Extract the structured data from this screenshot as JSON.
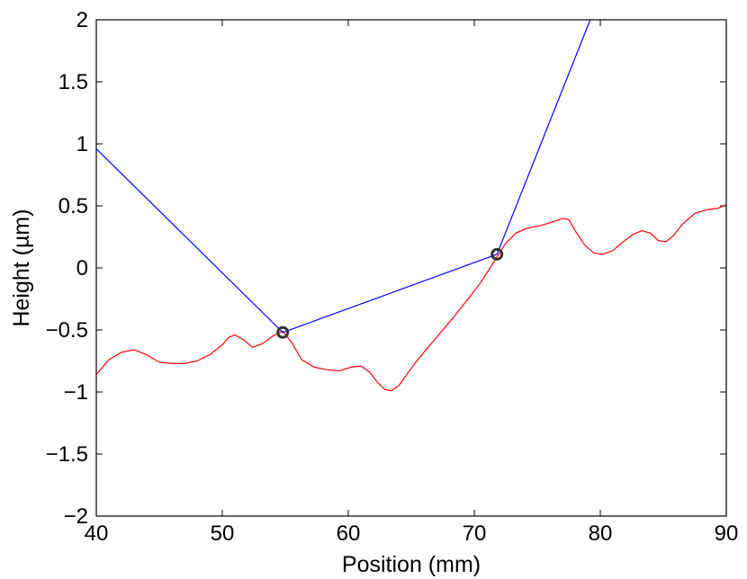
{
  "chart_data": {
    "type": "line",
    "xlabel": "Position (mm)",
    "ylabel": "Height (µm)",
    "xlim": [
      40,
      90
    ],
    "ylim": [
      -2,
      2
    ],
    "xticks": [
      40,
      50,
      60,
      70,
      80,
      90
    ],
    "xtick_labels": [
      "40",
      "50",
      "60",
      "70",
      "80",
      "90"
    ],
    "yticks": [
      2,
      1.5,
      1,
      0.5,
      0,
      -0.5,
      -1,
      -1.5,
      -2
    ],
    "ytick_labels": [
      "2",
      "1.5",
      "1",
      "0.5",
      "0",
      "−0.5",
      "−1",
      "−1.5",
      "−2"
    ],
    "grid": false,
    "legend": "none",
    "series": [
      {
        "color": "#ff0000",
        "style": "line",
        "x": [
          40,
          41,
          42,
          43,
          44,
          45,
          46,
          47,
          48,
          49,
          50,
          50.5,
          51,
          51.7,
          52.4,
          53.2,
          54,
          54.8,
          55.5,
          56.3,
          57.3,
          58.3,
          59.3,
          60.2,
          61,
          61.7,
          62.3,
          62.9,
          63.4,
          64,
          64.7,
          65.5,
          66.5,
          67.5,
          68.5,
          69.5,
          70.5,
          71.5,
          72.5,
          73.3,
          74.2,
          75.2,
          76.2,
          77,
          77.5,
          78,
          78.8,
          79.5,
          80.2,
          81,
          81.8,
          82.6,
          83.3,
          84,
          84.6,
          85.2,
          85.8,
          86.5,
          87.5,
          88.5,
          89.3,
          90
        ],
        "y": [
          -0.86,
          -0.74,
          -0.68,
          -0.66,
          -0.7,
          -0.76,
          -0.77,
          -0.77,
          -0.75,
          -0.7,
          -0.62,
          -0.56,
          -0.54,
          -0.58,
          -0.64,
          -0.61,
          -0.55,
          -0.51,
          -0.6,
          -0.74,
          -0.8,
          -0.82,
          -0.83,
          -0.8,
          -0.79,
          -0.84,
          -0.92,
          -0.98,
          -0.99,
          -0.95,
          -0.85,
          -0.74,
          -0.62,
          -0.5,
          -0.38,
          -0.25,
          -0.12,
          0.04,
          0.2,
          0.28,
          0.32,
          0.34,
          0.37,
          0.4,
          0.39,
          0.3,
          0.18,
          0.12,
          0.11,
          0.14,
          0.21,
          0.27,
          0.3,
          0.28,
          0.22,
          0.21,
          0.26,
          0.35,
          0.44,
          0.47,
          0.48,
          0.51
        ]
      },
      {
        "color": "#0000ff",
        "style": "line",
        "x": [
          40,
          54.8,
          71.8,
          79.2
        ],
        "y": [
          0.96,
          -0.52,
          0.11,
          2.0
        ]
      },
      {
        "color": "#333333",
        "style": "marker-circle",
        "x": [
          54.8,
          71.8
        ],
        "y": [
          -0.52,
          0.11
        ]
      }
    ]
  }
}
